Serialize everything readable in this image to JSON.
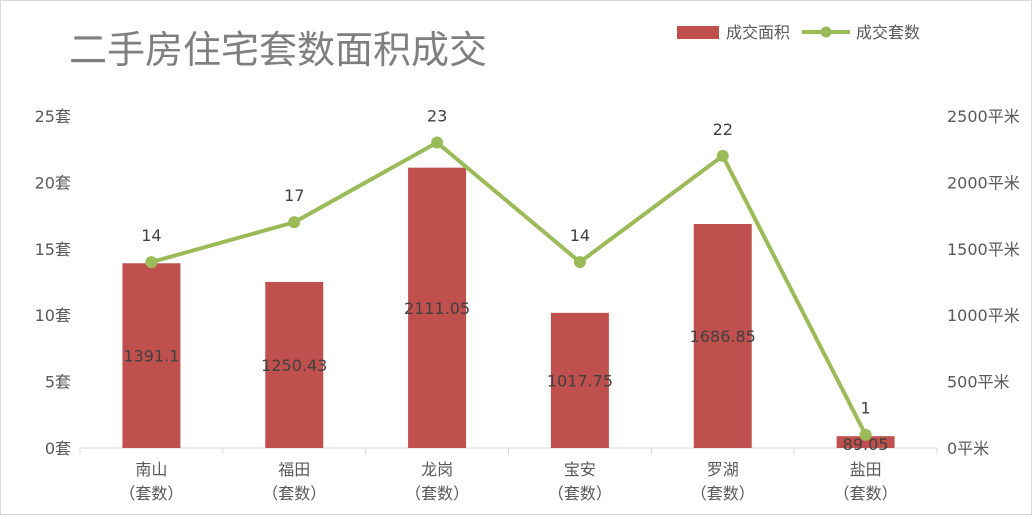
{
  "chart_data": {
    "type": "bar",
    "title": "二手房住宅套数面积成交",
    "categories": [
      [
        "南山",
        "（套数）"
      ],
      [
        "福田",
        "（套数）"
      ],
      [
        "龙岗",
        "（套数）"
      ],
      [
        "宝安",
        "（套数）"
      ],
      [
        "罗湖",
        "（套数）"
      ],
      [
        "盐田",
        "（套数）"
      ]
    ],
    "series": [
      {
        "name": "成交面积",
        "type": "bar",
        "axis": "right",
        "color": "#c0504d",
        "values": [
          1391.1,
          1250.43,
          2111.05,
          1017.75,
          1686.85,
          89.05
        ],
        "labels": [
          "1391.1",
          "1250.43",
          "2111.05",
          "1017.75",
          "1686.85",
          "89.05"
        ]
      },
      {
        "name": "成交套数",
        "type": "line",
        "axis": "left",
        "color": "#9bbb59",
        "values": [
          14,
          17,
          23,
          14,
          22,
          1
        ],
        "labels": [
          "14",
          "17",
          "23",
          "14",
          "22",
          "1"
        ]
      }
    ],
    "y_left": {
      "ylim": [
        0,
        25
      ],
      "ticks": [
        0,
        5,
        10,
        15,
        20,
        25
      ],
      "tick_labels": [
        "0套",
        "5套",
        "10套",
        "15套",
        "20套",
        "25套"
      ]
    },
    "y_right": {
      "ylim": [
        0,
        2500
      ],
      "ticks": [
        0,
        500,
        1000,
        1500,
        2000,
        2500
      ],
      "tick_labels": [
        "0平米",
        "500平米",
        "1000平米",
        "1500平米",
        "2000平米",
        "2500平米"
      ]
    },
    "grid": false,
    "legend": "top-right"
  }
}
